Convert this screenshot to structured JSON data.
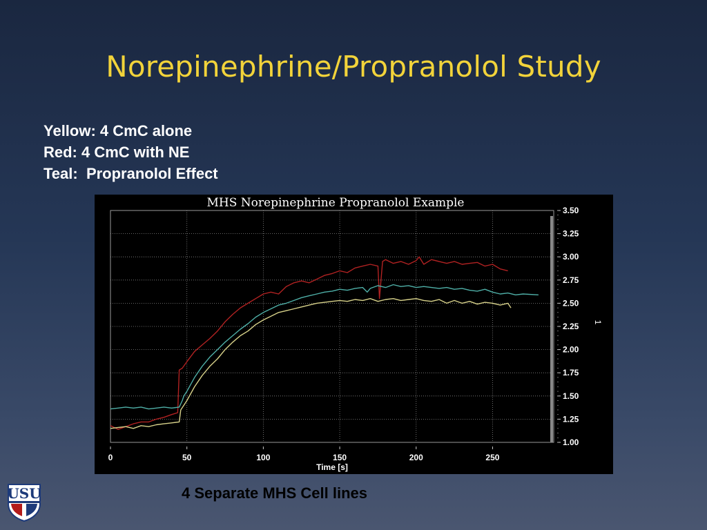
{
  "slide": {
    "title": "Norepinephrine/Propranolol Study",
    "notes": [
      "Yellow: 4 CmC alone",
      "Red: 4 CmC with NE",
      "Teal:  Propranolol Effect"
    ],
    "caption": "4 Separate MHS Cell lines"
  },
  "logo": {
    "text": "USU",
    "icon": "usu-shield-logo"
  },
  "chart_data": {
    "type": "line",
    "title": "MHS Norepinephrine Propranolol Example",
    "xlabel": "Time [s]",
    "ylabel": "",
    "y2_marker": "1",
    "xlim": [
      0,
      290
    ],
    "ylim": [
      1.0,
      3.5
    ],
    "x_ticks": [
      "0",
      "50",
      "100",
      "150",
      "200",
      "250"
    ],
    "y_ticks": [
      "3.50",
      "3.25",
      "3.00",
      "2.75",
      "2.50",
      "2.25",
      "2.00",
      "1.75",
      "1.50",
      "1.25",
      "1.00"
    ],
    "grid": true,
    "background": "#000000",
    "series": [
      {
        "color": "#b22222",
        "x": [
          0,
          5,
          10,
          15,
          20,
          25,
          30,
          35,
          40,
          44,
          45,
          47,
          50,
          55,
          60,
          65,
          70,
          75,
          80,
          85,
          90,
          95,
          100,
          105,
          110,
          115,
          120,
          125,
          130,
          135,
          140,
          145,
          150,
          155,
          160,
          165,
          170,
          175,
          176,
          178,
          180,
          185,
          190,
          195,
          200,
          202,
          205,
          210,
          215,
          220,
          225,
          230,
          235,
          240,
          245,
          250,
          255,
          260
        ],
        "y": [
          1.18,
          1.14,
          1.17,
          1.2,
          1.22,
          1.22,
          1.25,
          1.27,
          1.3,
          1.32,
          1.78,
          1.8,
          1.87,
          1.98,
          2.05,
          2.12,
          2.2,
          2.3,
          2.38,
          2.45,
          2.5,
          2.55,
          2.6,
          2.62,
          2.6,
          2.68,
          2.72,
          2.74,
          2.72,
          2.76,
          2.8,
          2.82,
          2.85,
          2.83,
          2.88,
          2.9,
          2.92,
          2.9,
          2.55,
          2.95,
          2.97,
          2.93,
          2.95,
          2.92,
          2.96,
          3.0,
          2.92,
          2.97,
          2.95,
          2.93,
          2.95,
          2.92,
          2.93,
          2.94,
          2.9,
          2.92,
          2.87,
          2.85
        ]
      },
      {
        "color": "#4fb0a8",
        "x": [
          0,
          5,
          10,
          15,
          20,
          25,
          30,
          35,
          40,
          45,
          47,
          48,
          50,
          55,
          60,
          65,
          70,
          75,
          80,
          85,
          90,
          95,
          100,
          105,
          110,
          115,
          120,
          125,
          130,
          135,
          140,
          145,
          150,
          155,
          160,
          165,
          168,
          170,
          175,
          180,
          185,
          190,
          195,
          200,
          205,
          210,
          215,
          220,
          225,
          230,
          235,
          240,
          245,
          250,
          255,
          260,
          265,
          270,
          280
        ],
        "y": [
          1.36,
          1.37,
          1.38,
          1.37,
          1.38,
          1.36,
          1.37,
          1.38,
          1.37,
          1.38,
          1.45,
          1.5,
          1.55,
          1.7,
          1.82,
          1.92,
          2.0,
          2.08,
          2.15,
          2.22,
          2.28,
          2.35,
          2.4,
          2.44,
          2.48,
          2.5,
          2.53,
          2.56,
          2.58,
          2.6,
          2.62,
          2.63,
          2.65,
          2.64,
          2.66,
          2.67,
          2.62,
          2.66,
          2.69,
          2.67,
          2.7,
          2.68,
          2.69,
          2.67,
          2.68,
          2.67,
          2.66,
          2.67,
          2.65,
          2.66,
          2.64,
          2.63,
          2.65,
          2.62,
          2.6,
          2.61,
          2.59,
          2.6,
          2.59
        ]
      },
      {
        "color": "#d8d28a",
        "x": [
          0,
          5,
          10,
          15,
          20,
          25,
          30,
          35,
          40,
          45,
          46,
          48,
          50,
          55,
          60,
          65,
          70,
          75,
          80,
          85,
          90,
          95,
          100,
          105,
          110,
          115,
          120,
          125,
          130,
          135,
          140,
          145,
          150,
          155,
          160,
          165,
          170,
          175,
          180,
          185,
          190,
          195,
          200,
          205,
          210,
          215,
          220,
          225,
          230,
          235,
          240,
          245,
          250,
          255,
          260,
          262
        ],
        "y": [
          1.15,
          1.16,
          1.17,
          1.15,
          1.18,
          1.17,
          1.19,
          1.2,
          1.21,
          1.22,
          1.35,
          1.4,
          1.45,
          1.6,
          1.72,
          1.82,
          1.9,
          2.0,
          2.08,
          2.15,
          2.2,
          2.27,
          2.32,
          2.36,
          2.4,
          2.42,
          2.44,
          2.46,
          2.48,
          2.5,
          2.51,
          2.52,
          2.53,
          2.52,
          2.54,
          2.53,
          2.55,
          2.52,
          2.54,
          2.55,
          2.53,
          2.54,
          2.55,
          2.53,
          2.52,
          2.54,
          2.5,
          2.53,
          2.5,
          2.52,
          2.49,
          2.51,
          2.5,
          2.48,
          2.5,
          2.45
        ]
      }
    ]
  }
}
